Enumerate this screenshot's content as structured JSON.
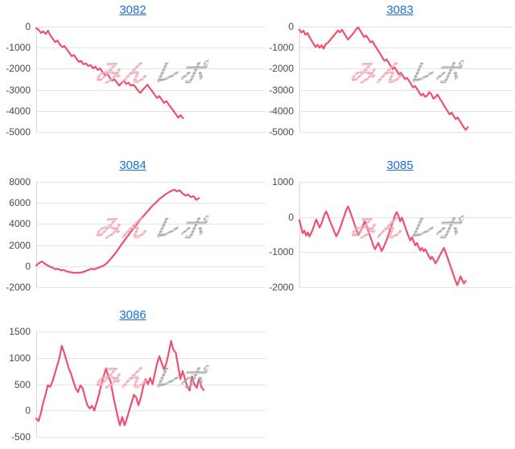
{
  "page": {
    "background": "#ffffff"
  },
  "style": {
    "line_color": "#f0506f",
    "grid_color": "#e4e4e4",
    "baseline_color": "#d8d8d8",
    "axis_label_color": "#4a4a4a",
    "title_link_color": "#1b6fd8",
    "watermark_pink": "#f0a9b6",
    "watermark_gray": "#ababab"
  },
  "watermark": {
    "part1": "みん",
    "part2": "レポ"
  },
  "chart_data": [
    {
      "type": "line",
      "title": "3082",
      "ylim": [
        -5000,
        0
      ],
      "yticks": [
        0,
        -1000,
        -2000,
        -3000,
        -4000,
        -5000
      ],
      "xlabel": "",
      "ylabel": "",
      "grid": true,
      "legend": "none",
      "end_fraction": 0.64,
      "values": [
        -80,
        -150,
        -300,
        -230,
        -350,
        -200,
        -430,
        -580,
        -740,
        -660,
        -860,
        -970,
        -930,
        -1090,
        -1240,
        -1400,
        -1360,
        -1520,
        -1670,
        -1630,
        -1790,
        -1750,
        -1870,
        -1830,
        -1980,
        -1900,
        -2060,
        -1990,
        -2140,
        -2290,
        -2240,
        -2410,
        -2570,
        -2500,
        -2640,
        -2800,
        -2680,
        -2570,
        -2720,
        -2660,
        -2800,
        -2760,
        -2880,
        -3030,
        -3150,
        -3000,
        -2880,
        -2760,
        -2920,
        -3070,
        -3230,
        -3380,
        -3300,
        -3460,
        -3620,
        -3540,
        -3700,
        -3850,
        -4000,
        -4160,
        -4320,
        -4200,
        -4350
      ]
    },
    {
      "type": "line",
      "title": "3083",
      "ylim": [
        -5000,
        0
      ],
      "yticks": [
        0,
        -1000,
        -2000,
        -3000,
        -4000,
        -5000
      ],
      "xlabel": "",
      "ylabel": "",
      "grid": true,
      "legend": "none",
      "end_fraction": 0.79,
      "values": [
        -150,
        -280,
        -200,
        -390,
        -310,
        -500,
        -660,
        -820,
        -970,
        -860,
        -1010,
        -890,
        -1050,
        -830,
        -780,
        -660,
        -540,
        -430,
        -310,
        -190,
        -270,
        -150,
        -310,
        -470,
        -620,
        -500,
        -390,
        -270,
        -120,
        -40,
        -190,
        -350,
        -500,
        -430,
        -580,
        -740,
        -700,
        -860,
        -1010,
        -1170,
        -1320,
        -1480,
        -1630,
        -1560,
        -1710,
        -1870,
        -2020,
        -1940,
        -2100,
        -2260,
        -2200,
        -2330,
        -2490,
        -2440,
        -2570,
        -2720,
        -2880,
        -2820,
        -2960,
        -3110,
        -3270,
        -3190,
        -3340,
        -3270,
        -3110,
        -3200,
        -3420,
        -3350,
        -3230,
        -3380,
        -3540,
        -3700,
        -3850,
        -4000,
        -4160,
        -4080,
        -4240,
        -4390,
        -4310,
        -4470,
        -4620,
        -4780,
        -4900,
        -4780
      ]
    },
    {
      "type": "line",
      "title": "3084",
      "ylim": [
        -2000,
        8000
      ],
      "yticks": [
        8000,
        6000,
        4000,
        2000,
        0,
        -2000
      ],
      "xlabel": "",
      "ylabel": "",
      "grid": true,
      "legend": "none",
      "end_fraction": 0.71,
      "values": [
        50,
        300,
        450,
        250,
        100,
        -50,
        -150,
        -300,
        -250,
        -400,
        -350,
        -500,
        -550,
        -600,
        -640,
        -600,
        -620,
        -560,
        -460,
        -350,
        -250,
        -300,
        -200,
        -100,
        0,
        150,
        400,
        700,
        1000,
        1350,
        1700,
        2100,
        2450,
        2800,
        3150,
        3500,
        3800,
        4150,
        4500,
        4800,
        5100,
        5400,
        5700,
        5950,
        6200,
        6450,
        6650,
        6850,
        7000,
        7150,
        7250,
        7100,
        7200,
        6900,
        6700,
        6800,
        6550,
        6650,
        6300,
        6450
      ]
    },
    {
      "type": "line",
      "title": "3085",
      "ylim": [
        -2000,
        1000
      ],
      "yticks": [
        1000,
        0,
        -1000,
        -2000
      ],
      "xlabel": "",
      "ylabel": "",
      "grid": true,
      "legend": "none",
      "end_fraction": 0.78,
      "values": [
        -90,
        -280,
        -460,
        -390,
        -530,
        -440,
        -550,
        -460,
        -350,
        -210,
        -70,
        -180,
        -300,
        -210,
        -70,
        70,
        160,
        50,
        -90,
        -210,
        -320,
        -440,
        -550,
        -460,
        -350,
        -210,
        -70,
        70,
        210,
        300,
        180,
        50,
        -90,
        -230,
        -370,
        -510,
        -440,
        -350,
        -230,
        -120,
        -250,
        -390,
        -530,
        -670,
        -810,
        -920,
        -830,
        -740,
        -850,
        -970,
        -880,
        -760,
        -650,
        -510,
        -370,
        -230,
        -90,
        50,
        140,
        30,
        -120,
        -20,
        -140,
        -280,
        -420,
        -550,
        -670,
        -580,
        -690,
        -810,
        -740,
        -850,
        -950,
        -880,
        -970,
        -920,
        -1020,
        -1110,
        -1200,
        -1130,
        -1220,
        -1320,
        -1250,
        -1150,
        -1060,
        -970,
        -880,
        -990,
        -1130,
        -1270,
        -1410,
        -1550,
        -1690,
        -1820,
        -1940,
        -1820,
        -1690,
        -1800,
        -1890,
        -1820
      ]
    },
    {
      "type": "line",
      "title": "3086",
      "ylim": [
        -500,
        1500
      ],
      "yticks": [
        1500,
        1000,
        500,
        0,
        -500
      ],
      "xlabel": "",
      "ylabel": "",
      "grid": true,
      "legend": "none",
      "end_fraction": 0.73,
      "values": [
        -150,
        -200,
        -50,
        150,
        300,
        480,
        450,
        550,
        700,
        850,
        1000,
        1230,
        1100,
        950,
        800,
        700,
        550,
        420,
        350,
        480,
        420,
        250,
        100,
        40,
        90,
        0,
        150,
        300,
        500,
        650,
        800,
        650,
        550,
        300,
        100,
        -100,
        -280,
        -120,
        -280,
        -150,
        0,
        150,
        300,
        250,
        100,
        250,
        450,
        600,
        500,
        620,
        500,
        700,
        900,
        1030,
        900,
        780,
        900,
        1100,
        1320,
        1150,
        1100,
        850,
        600,
        750,
        600,
        450,
        380,
        650,
        500,
        430,
        600,
        450,
        390
      ]
    }
  ]
}
